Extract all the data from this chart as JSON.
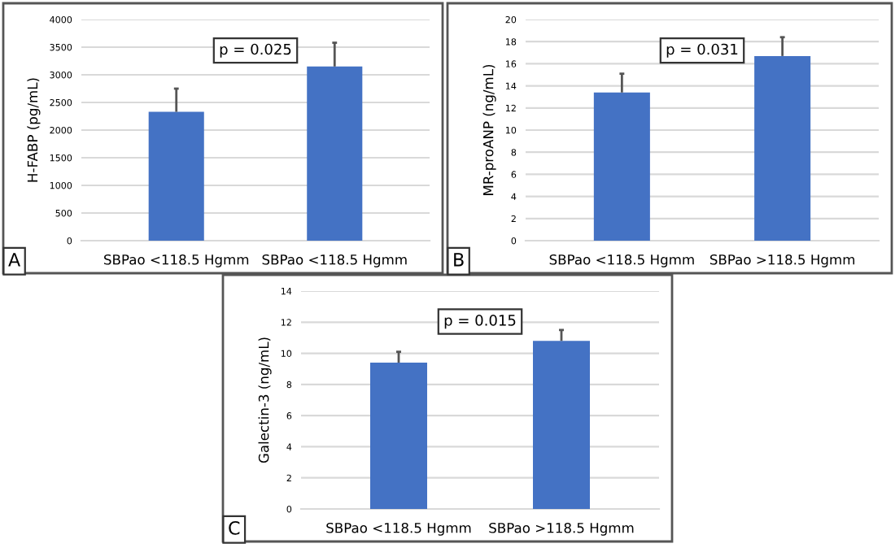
{
  "chart_data": [
    {
      "type": "bar",
      "categories": [
        "SBPao <118.5 Hgmm",
        "SBPao <118.5 Hgmm"
      ],
      "values": [
        2330,
        3150
      ],
      "errors": [
        [
          2330,
          2750
        ],
        [
          3150,
          3580
        ]
      ],
      "color": "#4472c4",
      "ylabel": "H-FABP (pg/mL)",
      "ylim": [
        0,
        4000
      ],
      "yticks": [
        0,
        500,
        1000,
        1500,
        2000,
        2500,
        3000,
        3500,
        4000
      ],
      "grid": "y",
      "annotations": [
        "p = 0.025",
        "A"
      ]
    },
    {
      "type": "bar",
      "categories": [
        "SBPao <118.5 Hgmm",
        "SBPao >118.5 Hgmm"
      ],
      "values": [
        13.4,
        16.7
      ],
      "errors": [
        [
          13.4,
          15.1
        ],
        [
          16.7,
          18.4
        ]
      ],
      "color": "#4472c4",
      "ylabel": "MR-proANP (ng/mL)",
      "ylim": [
        0,
        20
      ],
      "yticks": [
        0,
        2,
        4,
        6,
        8,
        10,
        12,
        14,
        16,
        18,
        20
      ],
      "grid": "y",
      "annotations": [
        "p = 0.031",
        "B"
      ]
    },
    {
      "type": "bar",
      "categories": [
        "SBPao <118.5 Hgmm",
        "SBPao >118.5 Hgmm"
      ],
      "values": [
        9.4,
        10.8
      ],
      "errors": [
        [
          9.4,
          10.1
        ],
        [
          10.8,
          11.5
        ]
      ],
      "color": "#4472c4",
      "ylabel": "Galectin-3 (ng/mL)",
      "ylim": [
        0,
        14
      ],
      "yticks": [
        0,
        2,
        4,
        6,
        8,
        10,
        12,
        14
      ],
      "grid": "y",
      "annotations": [
        "p = 0.015",
        "C"
      ]
    }
  ]
}
